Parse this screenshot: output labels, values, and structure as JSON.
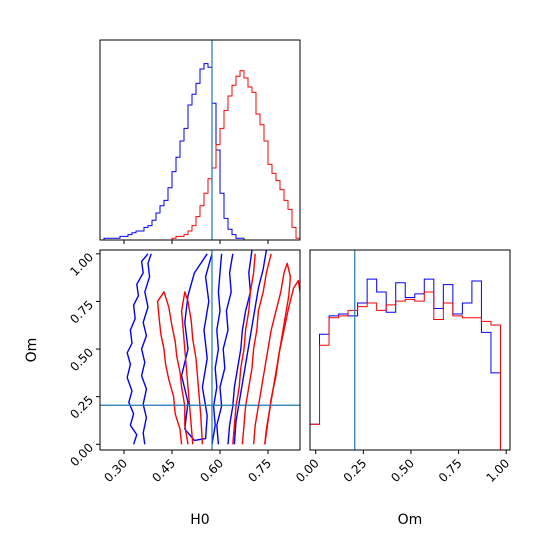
{
  "chart_data": {
    "type": "corner",
    "parameters": [
      "H0",
      "Om"
    ],
    "colors": {
      "blue": "#0000ff",
      "red": "#ff0000",
      "truth": "#1f77b4"
    },
    "truth": {
      "H0": 0.575,
      "Om": 0.205
    },
    "axis_labels": {
      "H0": "H0",
      "Om": "Om"
    },
    "ranges": {
      "H0": [
        0.225,
        0.85
      ],
      "Om": [
        -0.03,
        1.02
      ]
    },
    "ticks": {
      "H0": {
        "values": [
          0.3,
          0.45,
          0.6,
          0.75
        ],
        "labels": [
          "0.30",
          "0.45",
          "0.60",
          "0.75"
        ]
      },
      "Om": {
        "values": [
          0,
          0.25,
          0.5,
          0.75,
          1
        ],
        "labels": [
          "0.00",
          "0.25",
          "0.50",
          "0.75",
          "1.00"
        ]
      }
    },
    "h0_histograms": {
      "bin_edges": [
        0.225,
        0.2375,
        0.25,
        0.2625,
        0.275,
        0.2875,
        0.3,
        0.3125,
        0.325,
        0.3375,
        0.35,
        0.3625,
        0.375,
        0.3875,
        0.4,
        0.4125,
        0.425,
        0.4375,
        0.45,
        0.4625,
        0.475,
        0.4875,
        0.5,
        0.5125,
        0.525,
        0.5375,
        0.55,
        0.5625,
        0.575,
        0.5875,
        0.6,
        0.6125,
        0.625,
        0.6375,
        0.65,
        0.6625,
        0.675,
        0.6875,
        0.7,
        0.7125,
        0.725,
        0.7375,
        0.75,
        0.7625,
        0.775,
        0.7875,
        0.8,
        0.8125,
        0.825,
        0.8375,
        0.85
      ],
      "series": [
        {
          "name": "",
          "color": "blue",
          "values": [
            0,
            0.01,
            0.01,
            0.01,
            0.01,
            0.02,
            0.02,
            0.03,
            0.04,
            0.05,
            0.05,
            0.07,
            0.08,
            0.11,
            0.15,
            0.19,
            0.22,
            0.29,
            0.38,
            0.46,
            0.55,
            0.62,
            0.75,
            0.81,
            0.87,
            0.95,
            0.98,
            0.96,
            0.76,
            0.5,
            0.26,
            0.12,
            0.06,
            0.03,
            0.01,
            0.01,
            0,
            0,
            0,
            0,
            0,
            0,
            0,
            0,
            0,
            0,
            0,
            0,
            0,
            0
          ]
        },
        {
          "name": "",
          "color": "red",
          "values": [
            0,
            0,
            0,
            0,
            0,
            0,
            0,
            0,
            0,
            0,
            0,
            0,
            0,
            0,
            0,
            0,
            0,
            0,
            0.01,
            0.02,
            0.02,
            0.03,
            0.05,
            0.08,
            0.13,
            0.19,
            0.26,
            0.34,
            0.4,
            0.53,
            0.62,
            0.72,
            0.8,
            0.86,
            0.91,
            0.94,
            0.9,
            0.85,
            0.82,
            0.7,
            0.64,
            0.55,
            0.42,
            0.37,
            0.33,
            0.28,
            0.22,
            0.17,
            0.07,
            0.01
          ]
        }
      ]
    },
    "om_histograms": {
      "bin_edges": [
        -0.03,
        0.02,
        0.07,
        0.12,
        0.17,
        0.22,
        0.27,
        0.32,
        0.37,
        0.42,
        0.47,
        0.52,
        0.57,
        0.62,
        0.67,
        0.72,
        0.77,
        0.82,
        0.87,
        0.92,
        0.97,
        1.02
      ],
      "series": [
        {
          "name": "",
          "color": "blue",
          "values": [
            0.14,
            0.63,
            0.73,
            0.74,
            0.73,
            0.8,
            0.93,
            0.86,
            0.75,
            0.91,
            0.83,
            0.85,
            0.93,
            0.77,
            0.9,
            0.74,
            0.8,
            0.92,
            0.64,
            0.42,
            0
          ]
        },
        {
          "name": "",
          "color": "red",
          "values": [
            0.14,
            0.57,
            0.72,
            0.73,
            0.76,
            0.78,
            0.8,
            0.76,
            0.79,
            0.81,
            0.82,
            0.81,
            0.86,
            0.71,
            0.8,
            0.73,
            0.72,
            0.72,
            0.7,
            0.68,
            0
          ]
        }
      ]
    },
    "contours": [
      {
        "color": "blue",
        "level": "outer-left",
        "points": [
          [
            0.375,
            1.0
          ],
          [
            0.355,
            0.96
          ],
          [
            0.36,
            0.9
          ],
          [
            0.34,
            0.84
          ],
          [
            0.345,
            0.78
          ],
          [
            0.33,
            0.73
          ],
          [
            0.335,
            0.66
          ],
          [
            0.32,
            0.6
          ],
          [
            0.325,
            0.53
          ],
          [
            0.31,
            0.48
          ],
          [
            0.32,
            0.42
          ],
          [
            0.31,
            0.35
          ],
          [
            0.325,
            0.28
          ],
          [
            0.315,
            0.22
          ],
          [
            0.33,
            0.16
          ],
          [
            0.32,
            0.1
          ],
          [
            0.34,
            0.05
          ],
          [
            0.33,
            0.0
          ]
        ]
      },
      {
        "color": "blue",
        "level": "outer-left-2",
        "points": [
          [
            0.365,
            0.0
          ],
          [
            0.36,
            0.06
          ],
          [
            0.37,
            0.14
          ],
          [
            0.36,
            0.21
          ],
          [
            0.37,
            0.29
          ],
          [
            0.355,
            0.36
          ],
          [
            0.365,
            0.43
          ],
          [
            0.355,
            0.5
          ],
          [
            0.37,
            0.57
          ],
          [
            0.36,
            0.64
          ],
          [
            0.375,
            0.72
          ],
          [
            0.365,
            0.8
          ],
          [
            0.38,
            0.88
          ],
          [
            0.375,
            0.95
          ],
          [
            0.385,
            1.0
          ]
        ]
      },
      {
        "color": "blue",
        "level": "inner",
        "points": [
          [
            0.605,
            1.0
          ],
          [
            0.6,
            0.9
          ],
          [
            0.595,
            0.8
          ],
          [
            0.6,
            0.7
          ],
          [
            0.59,
            0.6
          ],
          [
            0.595,
            0.5
          ],
          [
            0.585,
            0.4
          ],
          [
            0.59,
            0.3
          ],
          [
            0.58,
            0.2
          ],
          [
            0.585,
            0.1
          ],
          [
            0.575,
            0.0
          ]
        ]
      },
      {
        "color": "blue",
        "level": "mid",
        "points": [
          [
            0.64,
            1.0
          ],
          [
            0.63,
            0.9
          ],
          [
            0.635,
            0.8
          ],
          [
            0.62,
            0.7
          ],
          [
            0.625,
            0.6
          ],
          [
            0.61,
            0.5
          ],
          [
            0.615,
            0.4
          ],
          [
            0.6,
            0.3
          ],
          [
            0.605,
            0.2
          ],
          [
            0.59,
            0.1
          ],
          [
            0.595,
            0.0
          ]
        ]
      },
      {
        "color": "blue",
        "level": "outer-right",
        "points": [
          [
            0.7,
            1.02
          ],
          [
            0.69,
            0.9
          ],
          [
            0.695,
            0.8
          ],
          [
            0.68,
            0.7
          ],
          [
            0.67,
            0.6
          ],
          [
            0.665,
            0.5
          ],
          [
            0.655,
            0.4
          ],
          [
            0.645,
            0.3
          ],
          [
            0.64,
            0.2
          ],
          [
            0.63,
            0.1
          ],
          [
            0.625,
            0.0
          ]
        ]
      },
      {
        "color": "blue",
        "level": "outer-right-2",
        "points": [
          [
            0.745,
            1.02
          ],
          [
            0.735,
            0.92
          ],
          [
            0.72,
            0.82
          ],
          [
            0.71,
            0.72
          ],
          [
            0.7,
            0.62
          ],
          [
            0.69,
            0.52
          ],
          [
            0.68,
            0.42
          ],
          [
            0.67,
            0.32
          ],
          [
            0.66,
            0.22
          ],
          [
            0.65,
            0.12
          ],
          [
            0.645,
            0.0
          ]
        ]
      },
      {
        "color": "blue",
        "level": "left-inner-loop",
        "points": [
          [
            0.56,
            1.0
          ],
          [
            0.52,
            0.9
          ],
          [
            0.5,
            0.78
          ],
          [
            0.49,
            0.64
          ],
          [
            0.5,
            0.5
          ],
          [
            0.48,
            0.36
          ],
          [
            0.5,
            0.22
          ],
          [
            0.49,
            0.08
          ],
          [
            0.52,
            0.02
          ],
          [
            0.555,
            0.03
          ],
          [
            0.56,
            0.15
          ],
          [
            0.545,
            0.3
          ],
          [
            0.56,
            0.45
          ],
          [
            0.55,
            0.6
          ],
          [
            0.565,
            0.75
          ],
          [
            0.555,
            0.88
          ],
          [
            0.575,
            1.0
          ]
        ]
      },
      {
        "color": "red",
        "level": "left-outer",
        "points": [
          [
            0.48,
            0.0
          ],
          [
            0.475,
            0.08
          ],
          [
            0.46,
            0.16
          ],
          [
            0.455,
            0.25
          ],
          [
            0.44,
            0.34
          ],
          [
            0.43,
            0.42
          ],
          [
            0.425,
            0.5
          ],
          [
            0.415,
            0.58
          ],
          [
            0.41,
            0.66
          ],
          [
            0.405,
            0.75
          ],
          [
            0.425,
            0.8
          ],
          [
            0.44,
            0.72
          ],
          [
            0.45,
            0.62
          ],
          [
            0.46,
            0.54
          ],
          [
            0.465,
            0.46
          ],
          [
            0.475,
            0.38
          ],
          [
            0.48,
            0.3
          ],
          [
            0.49,
            0.2
          ],
          [
            0.49,
            0.1
          ],
          [
            0.5,
            0.0
          ]
        ]
      },
      {
        "color": "red",
        "level": "left-mid",
        "points": [
          [
            0.515,
            0.0
          ],
          [
            0.51,
            0.1
          ],
          [
            0.505,
            0.2
          ],
          [
            0.5,
            0.3
          ],
          [
            0.495,
            0.4
          ],
          [
            0.49,
            0.5
          ],
          [
            0.485,
            0.6
          ],
          [
            0.48,
            0.7
          ],
          [
            0.49,
            0.8
          ],
          [
            0.5,
            0.75
          ],
          [
            0.51,
            0.65
          ],
          [
            0.515,
            0.55
          ],
          [
            0.525,
            0.45
          ],
          [
            0.53,
            0.35
          ],
          [
            0.535,
            0.25
          ],
          [
            0.54,
            0.15
          ],
          [
            0.545,
            0.0
          ]
        ]
      },
      {
        "color": "red",
        "level": "center",
        "points": [
          [
            0.64,
            0.0
          ],
          [
            0.645,
            0.1
          ],
          [
            0.65,
            0.2
          ],
          [
            0.66,
            0.3
          ],
          [
            0.665,
            0.4
          ],
          [
            0.675,
            0.5
          ],
          [
            0.68,
            0.6
          ],
          [
            0.69,
            0.7
          ],
          [
            0.695,
            0.8
          ],
          [
            0.705,
            0.9
          ],
          [
            0.71,
            1.0
          ]
        ]
      },
      {
        "color": "red",
        "level": "right-mid",
        "points": [
          [
            0.67,
            0.0
          ],
          [
            0.675,
            0.1
          ],
          [
            0.68,
            0.2
          ],
          [
            0.69,
            0.3
          ],
          [
            0.7,
            0.4
          ],
          [
            0.705,
            0.5
          ],
          [
            0.715,
            0.6
          ],
          [
            0.72,
            0.7
          ],
          [
            0.735,
            0.8
          ],
          [
            0.745,
            0.9
          ],
          [
            0.76,
            1.0
          ]
        ]
      },
      {
        "color": "red",
        "level": "right-outer",
        "points": [
          [
            0.705,
            0.0
          ],
          [
            0.71,
            0.1
          ],
          [
            0.72,
            0.2
          ],
          [
            0.73,
            0.3
          ],
          [
            0.74,
            0.4
          ],
          [
            0.75,
            0.5
          ],
          [
            0.76,
            0.6
          ],
          [
            0.775,
            0.7
          ],
          [
            0.79,
            0.8
          ],
          [
            0.8,
            0.9
          ],
          [
            0.81,
            0.95
          ],
          [
            0.82,
            0.88
          ],
          [
            0.815,
            0.78
          ],
          [
            0.805,
            0.68
          ],
          [
            0.795,
            0.58
          ],
          [
            0.785,
            0.48
          ],
          [
            0.775,
            0.38
          ],
          [
            0.765,
            0.28
          ],
          [
            0.755,
            0.18
          ],
          [
            0.745,
            0.08
          ],
          [
            0.74,
            0.0
          ]
        ]
      },
      {
        "color": "red",
        "level": "right-far",
        "points": [
          [
            0.74,
            0.0
          ],
          [
            0.75,
            0.12
          ],
          [
            0.76,
            0.24
          ],
          [
            0.775,
            0.36
          ],
          [
            0.785,
            0.48
          ],
          [
            0.8,
            0.6
          ],
          [
            0.815,
            0.72
          ],
          [
            0.83,
            0.82
          ],
          [
            0.845,
            0.86
          ],
          [
            0.85,
            0.8
          ]
        ]
      }
    ]
  }
}
